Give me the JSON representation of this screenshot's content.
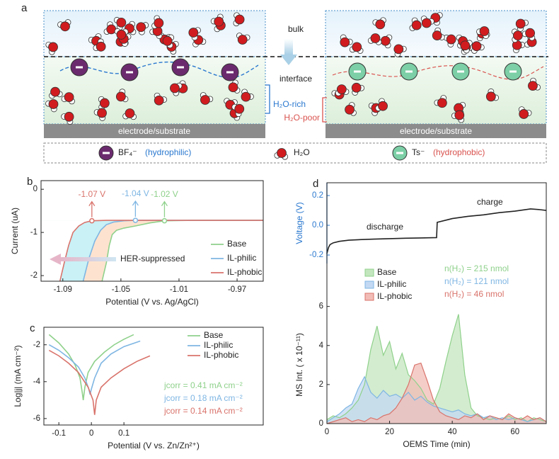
{
  "diagram": {
    "panel_label": "a",
    "bulk": "bulk",
    "interface": "interface",
    "h2o_rich": "H₂O-rich",
    "h2o_poor": "H₂O-poor",
    "electrode_left": "electrode/substrate",
    "electrode_right": "electrode/substrate",
    "legend": [
      {
        "symbol": "BF₄⁻",
        "note": "(hydrophilic)"
      },
      {
        "symbol": "H₂O"
      },
      {
        "symbol": "Ts⁻",
        "note": "(hydrophobic)"
      }
    ]
  },
  "chart_data": [
    {
      "type": "line",
      "panel_label": "b",
      "xlabel": "Potential (V vs. Ag/AgCl)",
      "ylabel": "Current (uA)",
      "xlim": [
        -1.105,
        -0.952
      ],
      "ylim": [
        -2.13,
        0.2
      ],
      "xticks": [
        -1.09,
        -1.05,
        -1.01,
        -0.97
      ],
      "yticks": [
        0,
        -1,
        -2
      ],
      "legend": "lower right",
      "annotation": "HER-suppressed",
      "series": [
        {
          "name": "Base",
          "color": "#8fd18b",
          "fill_color": "#fde3cf",
          "onset_potential": -1.02,
          "onset_label": "-1.02 V",
          "x": [
            -1.063,
            -1.06,
            -1.058,
            -1.056,
            -1.053,
            -1.048,
            -1.04,
            -1.03,
            -1.02,
            -1.0,
            -0.98,
            -0.952
          ],
          "values": [
            -2.13,
            -1.7,
            -1.3,
            -1.05,
            -0.95,
            -0.9,
            -0.85,
            -0.78,
            -0.73,
            -0.72,
            -0.72,
            -0.72
          ]
        },
        {
          "name": "IL-philic",
          "color": "#7fb6e3",
          "fill_color": "#c9f1f6",
          "onset_potential": -1.04,
          "onset_label": "-1.04 V",
          "x": [
            -1.076,
            -1.072,
            -1.068,
            -1.064,
            -1.06,
            -1.055,
            -1.048,
            -1.04,
            -1.0,
            -0.952
          ],
          "values": [
            -2.13,
            -1.6,
            -1.2,
            -0.95,
            -0.82,
            -0.76,
            -0.73,
            -0.72,
            -0.72,
            -0.72
          ]
        },
        {
          "name": "IL-phobic",
          "color": "#d9736b",
          "fill_color": "#ffffff",
          "onset_potential": -1.07,
          "onset_label": "-1.07 V",
          "x": [
            -1.092,
            -1.089,
            -1.086,
            -1.083,
            -1.079,
            -1.075,
            -1.07,
            -1.06,
            -1.0,
            -0.952
          ],
          "values": [
            -2.13,
            -1.7,
            -1.3,
            -1.0,
            -0.85,
            -0.77,
            -0.73,
            -0.72,
            -0.72,
            -0.72
          ]
        }
      ]
    },
    {
      "type": "line",
      "panel_label": "c",
      "xlabel": "Potential (V vs. Zn/Zn²⁺)",
      "ylabel": "Log|j| (mA cm⁻²)",
      "xlim": [
        -0.146,
        0.528
      ],
      "ylim": [
        -6.35,
        -1.05
      ],
      "xticks": [
        -0.1,
        0,
        0.1
      ],
      "yticks": [
        -2,
        -4,
        -6
      ],
      "legend": "upper right",
      "series": [
        {
          "name": "Base",
          "color": "#8fd18b",
          "note": "jcorr = 0.41 mA cm⁻²",
          "x": [
            -0.13,
            -0.1,
            -0.07,
            -0.05,
            -0.035,
            -0.028,
            -0.025,
            -0.02,
            -0.01,
            0.01,
            0.04,
            0.07,
            0.1,
            0.13
          ],
          "values": [
            -1.45,
            -1.9,
            -2.5,
            -3.1,
            -3.8,
            -4.6,
            -5.0,
            -4.3,
            -3.5,
            -2.9,
            -2.4,
            -2.0,
            -1.7,
            -1.45
          ]
        },
        {
          "name": "IL-philic",
          "color": "#7fb6e3",
          "note": "jcorr = 0.18 mA cm⁻²",
          "x": [
            -0.13,
            -0.1,
            -0.07,
            -0.04,
            -0.02,
            -0.008,
            -0.004,
            0.0,
            0.01,
            0.03,
            0.06,
            0.1,
            0.15
          ],
          "values": [
            -2.0,
            -2.3,
            -2.7,
            -3.2,
            -3.8,
            -4.4,
            -4.7,
            -4.4,
            -3.8,
            -3.0,
            -2.5,
            -2.1,
            -1.8
          ]
        },
        {
          "name": "IL-phobic",
          "color": "#d9736b",
          "note": "jcorr = 0.14 mA cm⁻²",
          "x": [
            -0.13,
            -0.1,
            -0.07,
            -0.04,
            -0.01,
            0.005,
            0.01,
            0.015,
            0.03,
            0.06,
            0.1,
            0.14,
            0.18
          ],
          "values": [
            -2.3,
            -2.6,
            -3.0,
            -3.5,
            -4.3,
            -5.0,
            -5.8,
            -5.0,
            -4.3,
            -3.8,
            -3.3,
            -2.9,
            -2.6
          ]
        }
      ]
    },
    {
      "type": "line",
      "panel_label": "d",
      "ylabel": "Voltage (V)",
      "axis_color": "#2a78cf",
      "xlim": [
        0,
        70
      ],
      "ylim": [
        -0.257,
        0.286
      ],
      "yticks": [
        -0.2,
        {
          "value": 0,
          "label": "0.0"
        },
        0.2
      ],
      "annotations": [
        "discharge",
        "charge"
      ],
      "series": [
        {
          "color": "#222222",
          "x": [
            0,
            0.5,
            1,
            2,
            4,
            7,
            10,
            15,
            20,
            25,
            30,
            35,
            35.2,
            40,
            45,
            50,
            55,
            60,
            65,
            68,
            70
          ],
          "values": [
            -0.19,
            -0.15,
            -0.13,
            -0.118,
            -0.108,
            -0.1,
            -0.097,
            -0.093,
            -0.09,
            -0.087,
            -0.085,
            -0.083,
            0.02,
            0.045,
            0.06,
            0.07,
            0.085,
            0.095,
            0.11,
            0.105,
            0.1
          ]
        }
      ]
    },
    {
      "type": "area",
      "xlabel": "OEMS Time (min)",
      "ylabel": "MS Int. ( x 10⁻¹¹)",
      "xlim": [
        0,
        70
      ],
      "ylim": [
        0,
        8.2
      ],
      "xticks": [
        0,
        20,
        40,
        60
      ],
      "yticks": [
        0,
        2,
        4,
        6
      ],
      "legend": "upper left",
      "x": [
        0,
        2,
        4,
        6,
        8,
        10,
        12,
        14,
        16,
        18,
        20,
        22,
        24,
        26,
        28,
        30,
        32,
        34,
        36,
        38,
        40,
        42,
        44,
        46,
        48,
        50,
        52,
        54,
        56,
        58,
        60,
        62,
        64,
        66,
        68,
        70
      ],
      "series": [
        {
          "name": "Base",
          "color": "#8fd18b",
          "fill_color": "#c4e6bf",
          "note": "n(H₂) = 215 nmol",
          "values": [
            0.2,
            0.4,
            0.3,
            0.5,
            0.8,
            1.2,
            2.0,
            3.8,
            5.0,
            3.5,
            4.2,
            2.8,
            3.6,
            2.5,
            2.2,
            1.8,
            1.2,
            1.0,
            1.8,
            3.2,
            4.5,
            5.6,
            2.5,
            0.8,
            0.4,
            0.3,
            0.2,
            0.3,
            0.2,
            0.4,
            0.2,
            0.3,
            0.1,
            0.3,
            0.2,
            0.1
          ]
        },
        {
          "name": "IL-philic",
          "color": "#7fb6e3",
          "fill_color": "#c3d9f3",
          "note": "n(H₂) = 121 nmol",
          "values": [
            0.1,
            0.3,
            0.5,
            0.8,
            1.0,
            1.8,
            2.4,
            1.6,
            1.3,
            1.7,
            1.4,
            1.5,
            1.3,
            1.6,
            1.2,
            1.4,
            1.1,
            0.9,
            0.8,
            0.7,
            0.6,
            0.7,
            0.5,
            0.4,
            0.5,
            0.3,
            0.4,
            0.2,
            0.3,
            0.2,
            0.3,
            0.2,
            0.1,
            0.2,
            0.3,
            0.1
          ]
        },
        {
          "name": "IL-phobic",
          "color": "#d9736b",
          "fill_color": "#f2bcb6",
          "note": "n(H₂) = 46 nmol",
          "values": [
            0,
            0.1,
            0.2,
            0.3,
            0.1,
            0.2,
            0.1,
            0.3,
            0.2,
            0.4,
            0.5,
            0.8,
            1.3,
            2.0,
            3.0,
            3.1,
            2.2,
            1.2,
            0.6,
            0.4,
            0.3,
            0.2,
            0.4,
            0.3,
            0.5,
            0.2,
            0.4,
            0.3,
            0.2,
            0.5,
            0.3,
            0.2,
            0.4,
            0.2,
            0.3,
            0.1
          ]
        }
      ]
    }
  ]
}
